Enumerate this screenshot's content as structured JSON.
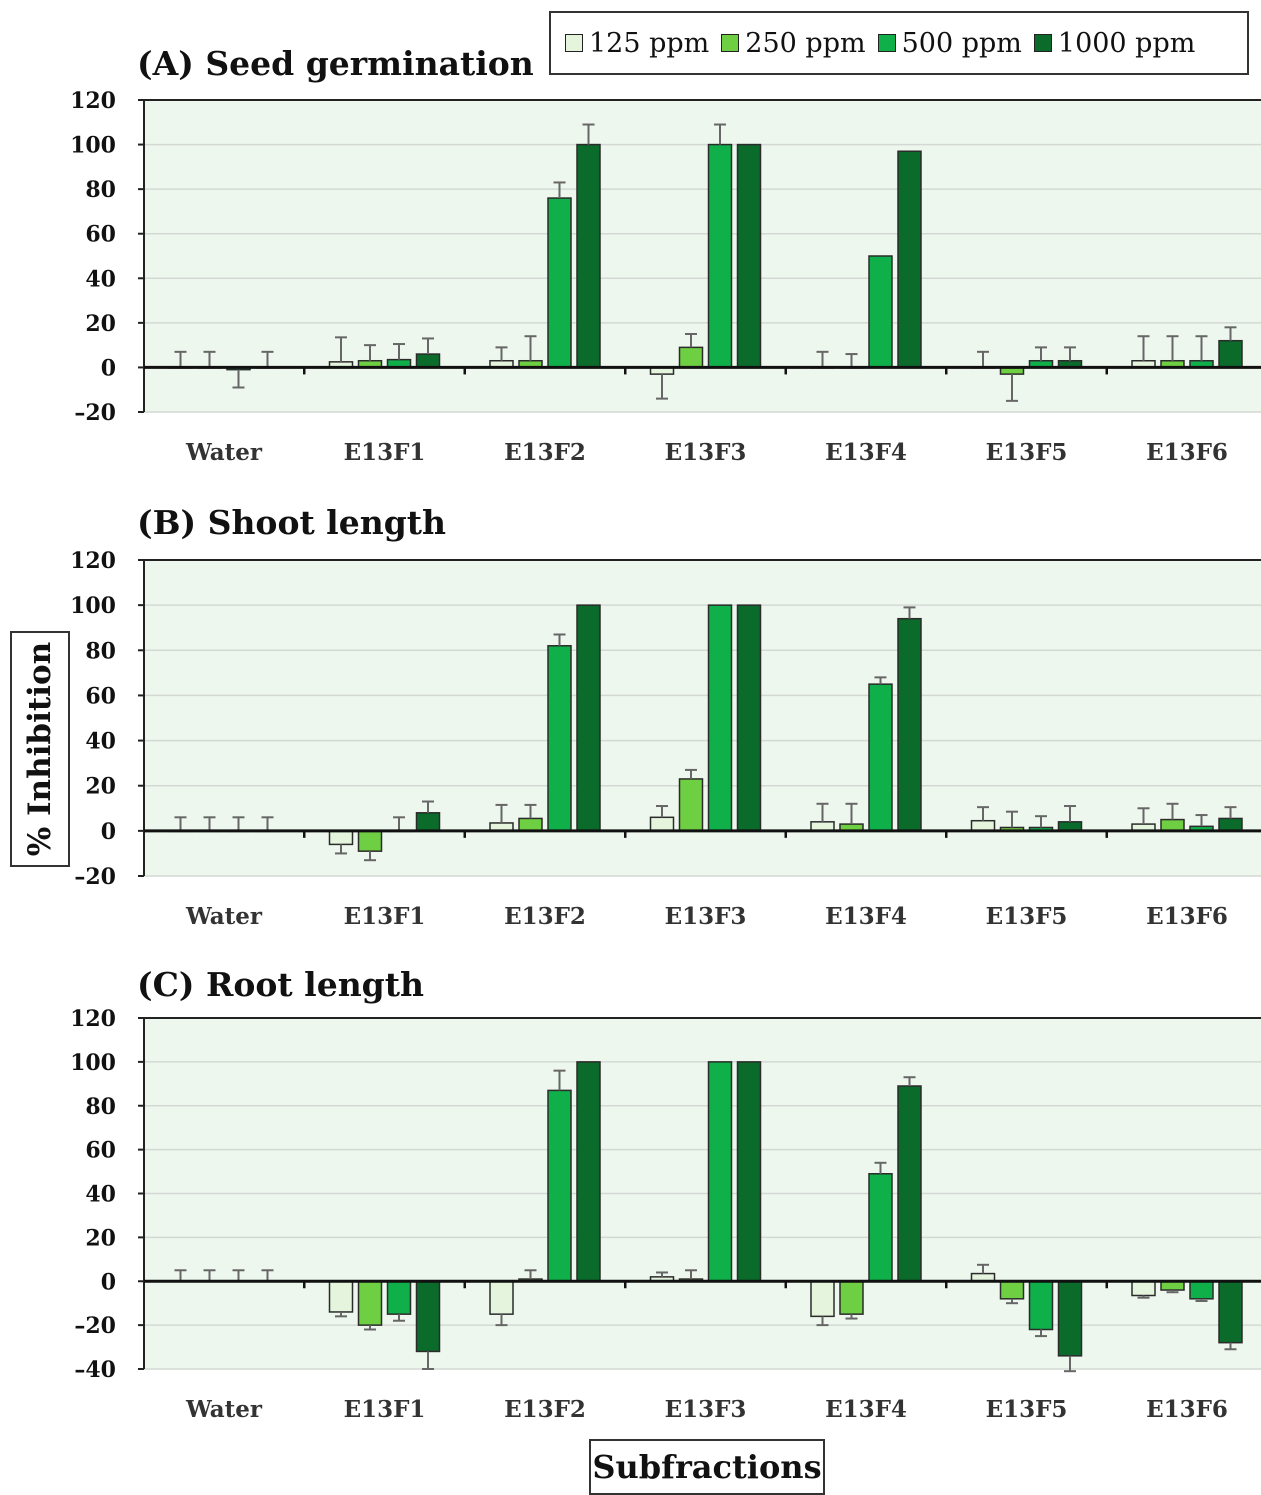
{
  "legend": {
    "items": [
      {
        "label": "125 ppm",
        "color": "#e4f4dd"
      },
      {
        "label": "250 ppm",
        "color": "#6fcf43"
      },
      {
        "label": "500 ppm",
        "color": "#0fb04a"
      },
      {
        "label": "1000 ppm",
        "color": "#0a6b2b"
      }
    ]
  },
  "ylabel": "% Inhibition",
  "xlabel": "Subfractions",
  "chart_data": [
    {
      "type": "bar",
      "title": "(A) Seed germination",
      "categories": [
        "Water",
        "E13F1",
        "E13F2",
        "E13F3",
        "E13F4",
        "E13F5",
        "E13F6"
      ],
      "ylim": [
        -20,
        120
      ],
      "yticks": [
        -20,
        0,
        20,
        40,
        60,
        80,
        100,
        120
      ],
      "grid": true,
      "series": [
        {
          "name": "125 ppm",
          "values": [
            0,
            2.5,
            3,
            -3,
            0,
            0,
            3
          ],
          "errors": [
            7,
            11,
            6,
            11,
            7,
            7,
            11
          ]
        },
        {
          "name": "250 ppm",
          "values": [
            0,
            3,
            3,
            9,
            0,
            -3,
            3
          ],
          "errors": [
            7,
            7,
            11,
            6,
            6,
            12,
            11
          ]
        },
        {
          "name": "500 ppm",
          "values": [
            -1,
            3.5,
            76,
            100,
            50,
            3,
            3
          ],
          "errors": [
            8,
            7,
            7,
            9,
            0,
            6,
            11
          ]
        },
        {
          "name": "1000 ppm",
          "values": [
            0,
            6,
            100,
            100,
            97,
            3,
            12
          ],
          "errors": [
            7,
            7,
            9,
            0,
            0,
            6,
            6
          ]
        }
      ]
    },
    {
      "type": "bar",
      "title": "(B) Shoot length",
      "categories": [
        "Water",
        "E13F1",
        "E13F2",
        "E13F3",
        "E13F4",
        "E13F5",
        "E13F6"
      ],
      "ylim": [
        -20,
        120
      ],
      "yticks": [
        -20,
        0,
        20,
        40,
        60,
        80,
        100,
        120
      ],
      "grid": true,
      "series": [
        {
          "name": "125 ppm",
          "values": [
            0,
            -6,
            3.5,
            6,
            4,
            4.5,
            3
          ],
          "errors": [
            6,
            4,
            8,
            5,
            8,
            6,
            7
          ]
        },
        {
          "name": "250 ppm",
          "values": [
            0,
            -9,
            5.5,
            23,
            3,
            1.5,
            5
          ],
          "errors": [
            6,
            4,
            6,
            4,
            9,
            7,
            7
          ]
        },
        {
          "name": "500 ppm",
          "values": [
            0,
            0,
            82,
            100,
            65,
            1.5,
            2
          ],
          "errors": [
            6,
            6,
            5,
            0,
            3,
            5,
            5
          ]
        },
        {
          "name": "1000 ppm",
          "values": [
            0,
            8,
            100,
            100,
            94,
            4,
            5.5
          ],
          "errors": [
            6,
            5,
            0,
            0,
            5,
            7,
            5
          ]
        }
      ]
    },
    {
      "type": "bar",
      "title": "(C) Root length",
      "categories": [
        "Water",
        "E13F1",
        "E13F2",
        "E13F3",
        "E13F4",
        "E13F5",
        "E13F6"
      ],
      "ylim": [
        -40,
        120
      ],
      "yticks": [
        -40,
        -20,
        0,
        20,
        40,
        60,
        80,
        100,
        120
      ],
      "grid": true,
      "series": [
        {
          "name": "125 ppm",
          "values": [
            0,
            -14,
            -15,
            2,
            -16,
            3.5,
            -6.5
          ],
          "errors": [
            5,
            2,
            5,
            2,
            4,
            4,
            1
          ]
        },
        {
          "name": "250 ppm",
          "values": [
            0,
            -20,
            1,
            1,
            -15,
            -8,
            -4
          ],
          "errors": [
            5,
            2,
            4,
            4,
            2,
            2,
            1
          ]
        },
        {
          "name": "500 ppm",
          "values": [
            0,
            -15,
            87,
            100,
            49,
            -22,
            -8
          ],
          "errors": [
            5,
            3,
            9,
            0,
            5,
            3,
            1
          ]
        },
        {
          "name": "1000 ppm",
          "values": [
            0,
            -32,
            100,
            100,
            89,
            -34,
            -28
          ],
          "errors": [
            5,
            8,
            0,
            0,
            4,
            7,
            3
          ]
        }
      ]
    }
  ]
}
